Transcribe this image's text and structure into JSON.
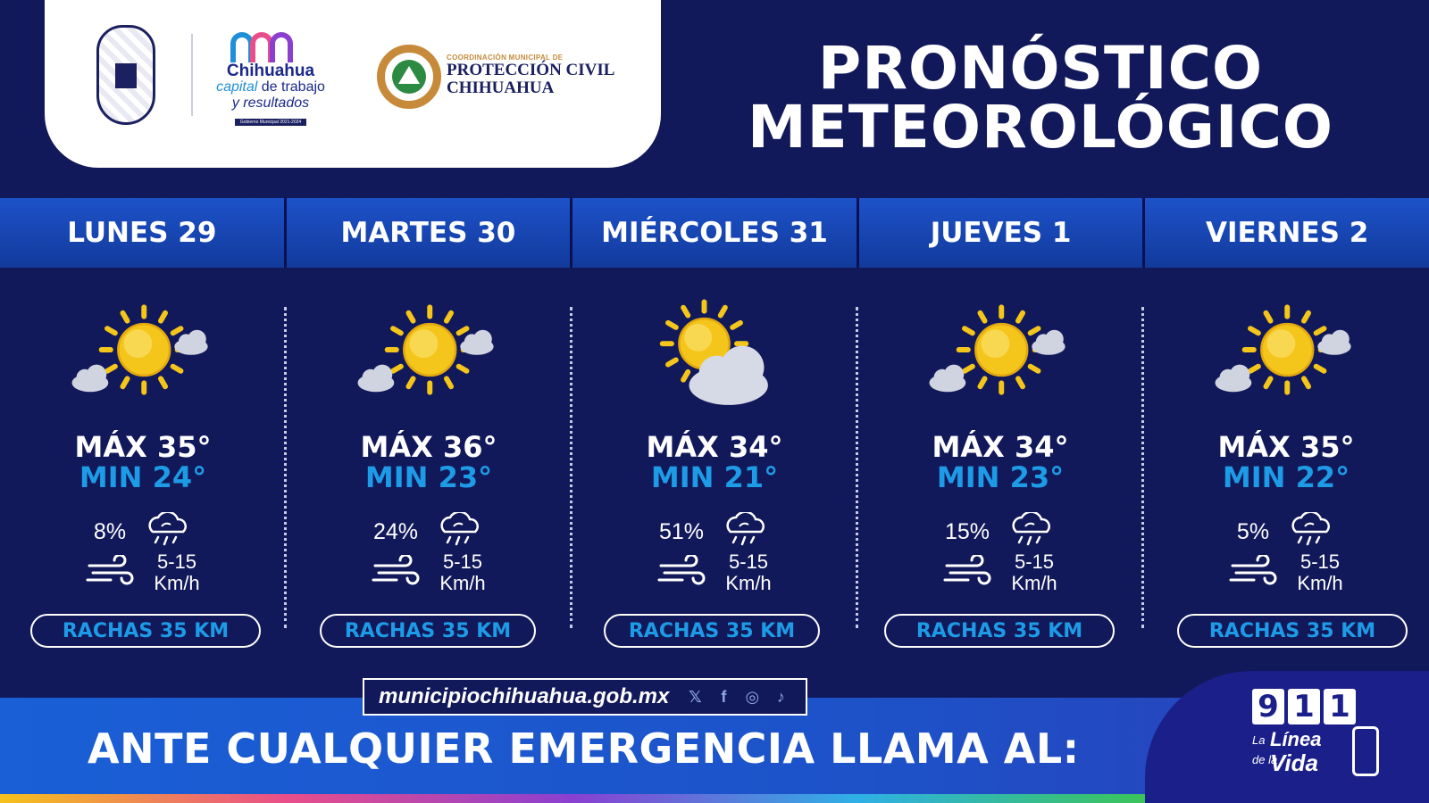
{
  "header": {
    "title_line1": "PRONÓSTICO",
    "title_line2": "METEOROLÓGICO",
    "city_logo": {
      "name": "Chihuahua",
      "tagline_highlight": "capital",
      "tagline_rest": " de trabajo",
      "tagline_line2": "y resultados",
      "subtitle": "Gobierno Municipal 2021-2024"
    },
    "civil_protection": {
      "small": "COORDINACIÓN MUNICIPAL DE",
      "line1": "PROTECCIÓN CIVIL",
      "line2": "CHIHUAHUA"
    }
  },
  "days": [
    {
      "label": "LUNES 29",
      "icon": "sunny-few-clouds-icon",
      "max": "MÁX 35°",
      "min": "MIN 24°",
      "rain": "8%",
      "wind_line1": "5-15",
      "wind_line2": "Km/h",
      "gusts": "RACHAS 35 KM"
    },
    {
      "label": "MARTES 30",
      "icon": "sunny-few-clouds-icon",
      "max": "MÁX 36°",
      "min": "MIN 23°",
      "rain": "24%",
      "wind_line1": "5-15",
      "wind_line2": "Km/h",
      "gusts": "RACHAS 35 KM"
    },
    {
      "label": "MIÉRCOLES 31",
      "icon": "partly-cloudy-icon",
      "max": "MÁX 34°",
      "min": "MIN 21°",
      "rain": "51%",
      "wind_line1": "5-15",
      "wind_line2": "Km/h",
      "gusts": "RACHAS 35 KM"
    },
    {
      "label": "JUEVES 1",
      "icon": "sunny-few-clouds-icon",
      "max": "MÁX 34°",
      "min": "MIN 23°",
      "rain": "15%",
      "wind_line1": "5-15",
      "wind_line2": "Km/h",
      "gusts": "RACHAS 35 KM"
    },
    {
      "label": "VIERNES 2",
      "icon": "sunny-few-clouds-icon",
      "max": "MÁX 35°",
      "min": "MIN 22°",
      "rain": "5%",
      "wind_line1": "5-15",
      "wind_line2": "Km/h",
      "gusts": "RACHAS 35 KM"
    }
  ],
  "footer": {
    "url": "municipiochihuahua.gob.mx",
    "socials": [
      "x-icon",
      "facebook-icon",
      "instagram-icon",
      "tiktok-icon"
    ],
    "emergency": "ANTE CUALQUIER EMERGENCIA LLAMA AL:",
    "emergency_number": [
      "9",
      "1",
      "1"
    ],
    "slogan_small1": "La",
    "slogan_big1": "Línea",
    "slogan_small2": "de la",
    "slogan_big2": "Vida"
  },
  "colors": {
    "background": "#12195a",
    "header_band": "#1d52c9",
    "min_temp": "#1e9be6",
    "sun": "#f4c51a",
    "cloud": "#d0d3e0"
  }
}
